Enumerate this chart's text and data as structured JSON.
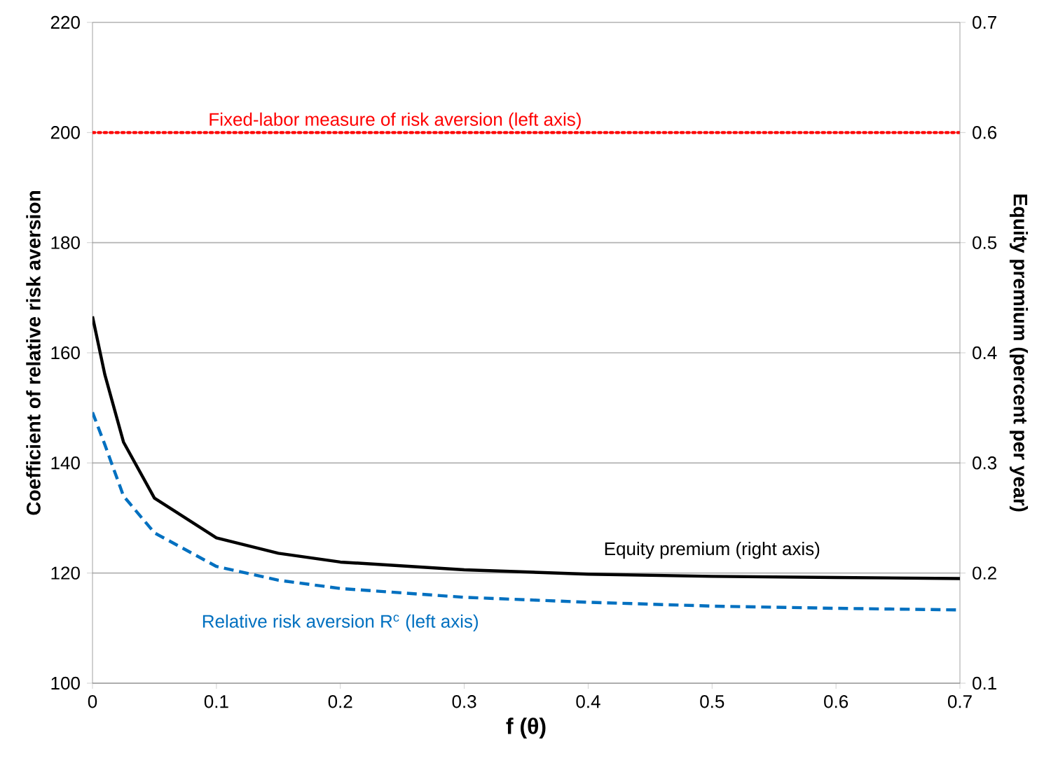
{
  "chart_data": {
    "type": "line",
    "xlabel": "f (θ)",
    "ylabel": "Coefficient of relative risk aversion",
    "y2label": "Equity premium (percent per year)",
    "xlim": [
      0,
      0.7
    ],
    "xticks": [
      0,
      0.1,
      0.2,
      0.3,
      0.4,
      0.5,
      0.6,
      0.7
    ],
    "ylim": [
      100,
      220
    ],
    "yticks": [
      100,
      120,
      140,
      160,
      180,
      200,
      220
    ],
    "y2lim": [
      0.1,
      0.7
    ],
    "y2ticks": [
      0.1,
      0.2,
      0.3,
      0.4,
      0.5,
      0.6,
      0.7
    ],
    "grid": "y",
    "marker": "none",
    "ref_lines": [
      {
        "axis": "y",
        "value": 200,
        "label": "Fixed-labor measure of risk aversion (left axis)",
        "color": "#ff0000",
        "line_style": "dotted"
      }
    ],
    "series": [
      {
        "name": "Equity premium (right axis)",
        "color": "#000000",
        "axis": "y2",
        "line_style": "solid",
        "x": [
          0,
          0.01,
          0.025,
          0.05,
          0.1,
          0.15,
          0.2,
          0.3,
          0.4,
          0.5,
          0.6,
          0.7
        ],
        "values": [
          0.433,
          0.38,
          0.319,
          0.268,
          0.232,
          0.218,
          0.21,
          0.203,
          0.199,
          0.197,
          0.196,
          0.195
        ]
      },
      {
        "name": "Relative risk aversion R$^{c}$ (left axis)",
        "color": "#0070c0",
        "axis": "y",
        "line_style": "dashed",
        "x": [
          0,
          0.01,
          0.025,
          0.05,
          0.1,
          0.15,
          0.2,
          0.3,
          0.4,
          0.5,
          0.6,
          0.7
        ],
        "values": [
          149.2,
          143.3,
          134.0,
          127.3,
          121.2,
          118.7,
          117.2,
          115.6,
          114.7,
          114.0,
          113.6,
          113.3
        ]
      }
    ]
  }
}
